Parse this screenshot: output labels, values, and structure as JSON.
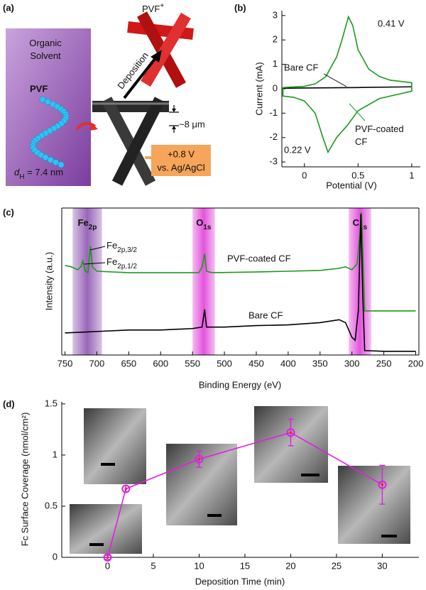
{
  "diagram": {
    "panel_label": "(a)",
    "solvent": "Organic Solvent",
    "polymer": "PVF",
    "size": {
      "text": "d",
      "sub": "H",
      "rest": " = 7.4 nm"
    },
    "oxidized": {
      "text": "PVF",
      "sup": "+"
    },
    "arrow": "Deposition",
    "thickness": "~8 μm",
    "bias": [
      "+0.8 V",
      "vs. Ag/AgCl"
    ]
  },
  "chart_data": [
    {
      "type": "line",
      "panel_label": "(b)",
      "x_label": "Potential (V)",
      "y_label": "Current (mA)",
      "xlim": [
        -0.21,
        1.08
      ],
      "ylim": [
        -3.2,
        3.2
      ],
      "xticks": [
        0,
        0.5,
        1
      ],
      "yticks": [
        -3,
        -2,
        -1,
        0,
        1,
        2,
        3
      ],
      "series": [
        {
          "name": "Bare CF",
          "color": "#000000",
          "x": [
            -0.2,
            0,
            0.5,
            1.0
          ],
          "values": [
            0.02,
            0.03,
            0.05,
            0.08
          ]
        },
        {
          "name": "PVF-coated CF",
          "color": "#1a9a1a",
          "x": [
            -0.2,
            0,
            0.1,
            0.2,
            0.3,
            0.35,
            0.41,
            0.45,
            0.5,
            0.6,
            0.7,
            0.8,
            0.9,
            1.0,
            1.0,
            0.9,
            0.7,
            0.5,
            0.4,
            0.3,
            0.22,
            0.18,
            0.1,
            0,
            -0.1,
            -0.2,
            -0.2
          ],
          "values": [
            0.05,
            0.1,
            0.2,
            0.5,
            1.3,
            2.0,
            2.95,
            2.6,
            1.6,
            0.8,
            0.5,
            0.35,
            0.3,
            0.25,
            -0.1,
            -0.2,
            -0.4,
            -0.9,
            -1.5,
            -2.0,
            -2.6,
            -2.1,
            -1.0,
            -0.5,
            -0.35,
            -0.3,
            0.05
          ]
        }
      ],
      "annotations": [
        "0.41 V",
        "0.22 V"
      ]
    },
    {
      "type": "line",
      "panel_label": "(c)",
      "x_label": "Binding Energy (eV)",
      "y_label": "Intensity (a.u.)",
      "xlim": [
        755,
        195
      ],
      "ylim": [
        0,
        100
      ],
      "xticks": [
        750,
        700,
        650,
        600,
        550,
        500,
        450,
        400,
        350,
        300,
        250,
        200
      ],
      "bands": [
        {
          "label": {
            "text": "Fe",
            "sub": "2p"
          },
          "range": [
            738,
            692
          ],
          "color": "#8e55b0"
        },
        {
          "label": {
            "text": "O",
            "sub": "1s"
          },
          "range": [
            550,
            515
          ],
          "color": "#e040d8"
        },
        {
          "label": {
            "text": "C",
            "sub": "1s"
          },
          "range": [
            305,
            270
          ],
          "color": "#e040d8"
        }
      ],
      "series": [
        {
          "name": "PVF-coated CF",
          "color": "#1a9a1a",
          "x": [
            750,
            740,
            730,
            725,
            722,
            718,
            714,
            710,
            707,
            700,
            650,
            600,
            550,
            540,
            535,
            531,
            528,
            520,
            450,
            400,
            350,
            320,
            310,
            300,
            292,
            288,
            285,
            283,
            280,
            250,
            200
          ],
          "values": [
            61,
            60,
            58,
            60,
            64,
            57,
            56,
            74,
            60,
            57,
            56,
            56,
            56,
            56,
            60,
            69,
            57,
            56,
            56.5,
            57,
            57.5,
            59,
            60,
            58,
            62,
            80,
            97,
            70,
            30,
            30,
            30
          ]
        },
        {
          "name": "Bare CF",
          "color": "#000000",
          "x": [
            750,
            700,
            650,
            600,
            550,
            535,
            531,
            528,
            500,
            450,
            400,
            350,
            320,
            310,
            300,
            295,
            290,
            286,
            283,
            280,
            250,
            200
          ],
          "values": [
            15,
            16,
            17,
            17,
            18,
            19,
            31,
            19,
            19,
            20,
            20.5,
            22,
            24,
            22,
            12,
            10,
            30,
            96,
            40,
            3,
            2.5,
            2.5
          ]
        }
      ],
      "annotations": [
        {
          "text": "Fe",
          "sub": "2p,3/2"
        },
        {
          "text": "Fe",
          "sub": "2p,1/2"
        }
      ]
    },
    {
      "type": "line",
      "panel_label": "(d)",
      "x_label": "Deposition Time (min)",
      "y_label": "Fc Surface Coverage (nmol/cm²)",
      "xlim": [
        -5,
        34
      ],
      "ylim": [
        0,
        1.52
      ],
      "xticks": [
        0,
        5,
        10,
        15,
        20,
        25,
        30
      ],
      "yticks": [
        0,
        0.5,
        1,
        1.5
      ],
      "series": [
        {
          "color": "#e020e0",
          "marker_color": "#e03030",
          "x": [
            0,
            2,
            10,
            20,
            30
          ],
          "values": [
            0,
            0.67,
            0.96,
            1.22,
            0.71
          ],
          "errors": [
            0.02,
            0.03,
            0.08,
            0.13,
            0.19
          ]
        }
      ]
    }
  ]
}
